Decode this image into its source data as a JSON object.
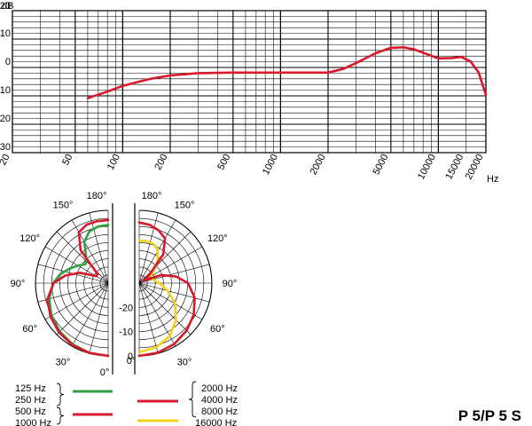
{
  "chart_data": [
    {
      "type": "line",
      "xscale": "log",
      "xlabel": "Hz",
      "ylabel": "dB",
      "xlim": [
        20,
        20000
      ],
      "ylim": [
        -30,
        20
      ],
      "x_tick_labels": [
        "20",
        "50",
        "100",
        "200",
        "500",
        "1000",
        "2000",
        "5000",
        "10000",
        "15000",
        "20000"
      ],
      "y_tick_labels": [
        "+20",
        "+10",
        "0",
        "-10",
        "-20",
        "-30"
      ],
      "grid": true,
      "series": [
        {
          "color": "#d9192b",
          "x": [
            60,
            80,
            100,
            150,
            200,
            300,
            500,
            1000,
            1500,
            2000,
            2500,
            3000,
            4000,
            5000,
            6000,
            7000,
            8000,
            10000,
            12000,
            14000,
            16000,
            18000,
            20000
          ],
          "y": [
            -10.8,
            -8.5,
            -6.5,
            -4,
            -2.8,
            -2,
            -1.8,
            -1.8,
            -1.8,
            -1.8,
            -0.5,
            1.5,
            5,
            6.9,
            7.1,
            6.4,
            5.2,
            3.2,
            3.3,
            3.7,
            2.1,
            -1.8,
            -9.7
          ]
        }
      ]
    },
    {
      "type": "polar",
      "angle_labels": [
        "180°",
        "150°",
        "120°",
        "90°",
        "60°",
        "30°",
        "0°"
      ],
      "radial_labels": [
        "-20",
        "-10",
        "0"
      ],
      "rlim": [
        -30,
        0
      ],
      "left_half": [
        {
          "name": "125 Hz / 250 Hz",
          "color": "#2ea043",
          "angles": [
            0,
            15,
            30,
            45,
            60,
            75,
            90,
            100,
            110,
            120,
            130,
            140,
            150,
            160,
            170,
            180
          ],
          "values": [
            0,
            -0.2,
            -0.8,
            -1.8,
            -3,
            -4.8,
            -7.3,
            -9.8,
            -12.8,
            -15.6,
            -17.8,
            -15.8,
            -10.3,
            -7.3,
            -6.3,
            -6
          ]
        },
        {
          "name": "500 Hz / 1000 Hz",
          "color": "#d9192b",
          "angles": [
            0,
            15,
            30,
            45,
            60,
            75,
            90,
            100,
            110,
            120,
            130,
            140,
            150,
            160,
            170,
            180
          ],
          "values": [
            0,
            -0.2,
            -0.5,
            -1.3,
            -2.5,
            -4,
            -7.5,
            -12,
            -17.5,
            -24.3,
            -24.3,
            -12.3,
            -5.8,
            -4.3,
            -4.1,
            -4
          ]
        }
      ],
      "right_half": [
        {
          "name": "2000 Hz / 4000 Hz / 8000 Hz",
          "color": "#d9192b",
          "angles": [
            0,
            15,
            30,
            45,
            60,
            75,
            90,
            100,
            110,
            120,
            130,
            140,
            150,
            160,
            170,
            180
          ],
          "values": [
            0,
            -0.3,
            -1,
            -2.3,
            -4,
            -6.3,
            -9.8,
            -14.5,
            -20.3,
            -28,
            -24.3,
            -14.5,
            -8.7,
            -6.8,
            -5.6,
            -5
          ]
        },
        {
          "name": "16000 Hz",
          "color": "#f2d21a",
          "angles": [
            0,
            15,
            30,
            45,
            60,
            75,
            90,
            100,
            110,
            120,
            130,
            140,
            150,
            160,
            170,
            180
          ],
          "values": [
            -1.5,
            -2.6,
            -4.8,
            -8.5,
            -13,
            -17.7,
            -21.8,
            -23.5,
            -24.5,
            -24.3,
            -22.3,
            -18.3,
            -14.6,
            -12.8,
            -12.5,
            -12.5
          ]
        }
      ]
    }
  ],
  "legend": {
    "left_group1": [
      "125 Hz",
      "250 Hz"
    ],
    "left_group2": [
      "500 Hz",
      "1000 Hz"
    ],
    "right_group1": [
      "2000 Hz",
      "4000 Hz",
      "8000 Hz"
    ],
    "right_group2": [
      "16000 Hz"
    ]
  },
  "model_label": "P 5/P 5 S",
  "colors": {
    "red": "#d9192b",
    "green": "#2ea043",
    "yellow": "#f2d21a",
    "grid": "#000000"
  }
}
